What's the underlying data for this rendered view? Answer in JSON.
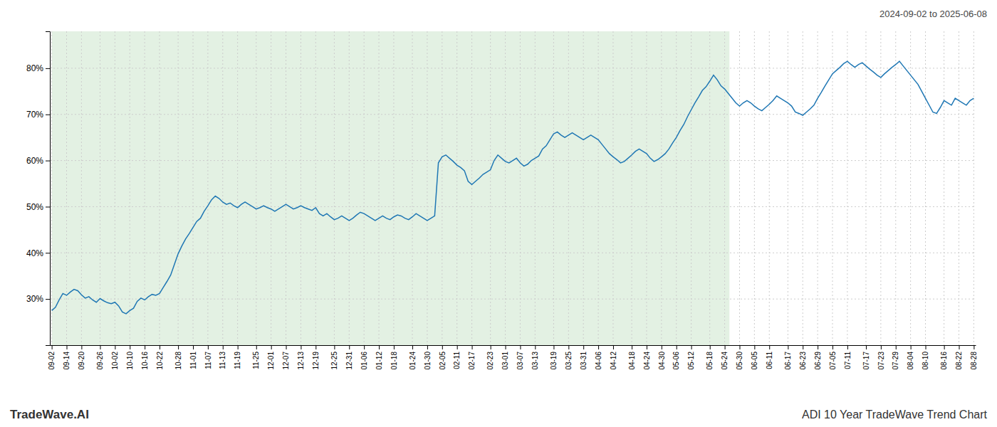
{
  "chart_data": {
    "type": "line",
    "title": "ADI 10 Year TradeWave Trend Chart",
    "subtitle": "2024-09-02 to 2025-06-08",
    "annotations": [
      "TradeWave.AI"
    ],
    "grid": true,
    "ylim": [
      20,
      88
    ],
    "yticks": [
      {
        "value": 30,
        "label": "30%"
      },
      {
        "value": 40,
        "label": "40%"
      },
      {
        "value": 50,
        "label": "50%"
      },
      {
        "value": 60,
        "label": "60%"
      },
      {
        "value": 70,
        "label": "70%"
      },
      {
        "value": 80,
        "label": "80%"
      }
    ],
    "shaded_fraction": 0.735,
    "categories": [
      "09-02",
      null,
      null,
      null,
      "09-14",
      null,
      null,
      null,
      "09-20",
      null,
      null,
      null,
      null,
      "09-26",
      null,
      null,
      null,
      "10-02",
      null,
      null,
      null,
      "10-10",
      null,
      null,
      null,
      "10-16",
      null,
      null,
      null,
      "10-22",
      null,
      null,
      null,
      null,
      "10-28",
      null,
      null,
      null,
      "11-01",
      null,
      null,
      null,
      "11-07",
      null,
      null,
      null,
      "11-13",
      null,
      null,
      null,
      "11-19",
      null,
      null,
      null,
      null,
      "11-25",
      null,
      null,
      null,
      "12-01",
      null,
      null,
      null,
      "12-07",
      null,
      null,
      null,
      "12-13",
      null,
      null,
      null,
      "12-19",
      null,
      null,
      null,
      null,
      "12-25",
      null,
      null,
      null,
      "12-31",
      null,
      null,
      null,
      "01-06",
      null,
      null,
      null,
      "01-12",
      null,
      null,
      null,
      "01-18",
      null,
      null,
      null,
      null,
      "01-24",
      null,
      null,
      null,
      "01-30",
      null,
      null,
      null,
      "02-05",
      null,
      null,
      null,
      "02-11",
      null,
      null,
      null,
      "02-17",
      null,
      null,
      null,
      null,
      "02-23",
      null,
      null,
      null,
      "03-01",
      null,
      null,
      null,
      "03-07",
      null,
      null,
      null,
      "03-13",
      null,
      null,
      null,
      null,
      "03-19",
      null,
      null,
      null,
      "03-25",
      null,
      null,
      null,
      "03-31",
      null,
      null,
      null,
      "04-06",
      null,
      null,
      null,
      "04-12",
      null,
      null,
      null,
      null,
      "04-18",
      null,
      null,
      null,
      "04-24",
      null,
      null,
      null,
      "04-30",
      null,
      null,
      null,
      "05-06",
      null,
      null,
      null,
      "05-12",
      null,
      null,
      null,
      null,
      "05-18",
      null,
      null,
      null,
      "05-24",
      null,
      null,
      null,
      "05-30",
      null,
      null,
      null,
      "06-05",
      null,
      null,
      null,
      "06-11",
      null,
      null,
      null,
      null,
      "06-17",
      null,
      null,
      null,
      "06-23",
      null,
      null,
      null,
      "06-29",
      null,
      null,
      null,
      "07-05",
      null,
      null,
      null,
      "07-11",
      null,
      null,
      null,
      null,
      "07-17",
      null,
      null,
      null,
      "07-23",
      null,
      null,
      null,
      "07-29",
      null,
      null,
      null,
      "08-04",
      null,
      null,
      null,
      "08-10",
      null,
      null,
      null,
      null,
      "08-16",
      null,
      null,
      null,
      "08-22",
      null,
      null,
      null,
      "08-28"
    ],
    "values": [
      27.5,
      28.2,
      29.8,
      31.2,
      30.8,
      31.5,
      32.1,
      31.8,
      30.9,
      30.2,
      30.5,
      29.8,
      29.3,
      30.1,
      29.6,
      29.2,
      29.0,
      29.3,
      28.5,
      27.2,
      26.8,
      27.5,
      28.0,
      29.5,
      30.2,
      29.8,
      30.5,
      31.0,
      30.8,
      31.2,
      32.5,
      33.8,
      35.2,
      37.5,
      39.8,
      41.5,
      43.0,
      44.2,
      45.5,
      46.8,
      47.5,
      49.0,
      50.2,
      51.5,
      52.3,
      51.8,
      51.0,
      50.5,
      50.8,
      50.2,
      49.8,
      50.5,
      51.0,
      50.5,
      50.0,
      49.5,
      49.8,
      50.2,
      49.8,
      49.5,
      49.0,
      49.5,
      50.0,
      50.5,
      50.0,
      49.5,
      49.8,
      50.2,
      49.8,
      49.5,
      49.2,
      49.8,
      48.5,
      48.0,
      48.5,
      47.8,
      47.2,
      47.5,
      48.0,
      47.5,
      47.0,
      47.5,
      48.2,
      48.8,
      48.5,
      48.0,
      47.5,
      47.0,
      47.5,
      48.0,
      47.5,
      47.2,
      47.8,
      48.2,
      48.0,
      47.5,
      47.2,
      47.8,
      48.5,
      48.0,
      47.5,
      47.0,
      47.5,
      48.0,
      59.5,
      60.8,
      61.2,
      60.5,
      59.8,
      59.0,
      58.5,
      57.8,
      55.5,
      54.8,
      55.5,
      56.2,
      57.0,
      57.5,
      58.0,
      60.0,
      61.2,
      60.5,
      59.8,
      59.5,
      60.0,
      60.5,
      59.5,
      58.8,
      59.2,
      60.0,
      60.5,
      61.0,
      62.5,
      63.2,
      64.5,
      65.8,
      66.2,
      65.5,
      65.0,
      65.5,
      66.0,
      65.5,
      65.0,
      64.5,
      65.0,
      65.5,
      65.0,
      64.5,
      63.5,
      62.5,
      61.5,
      60.8,
      60.2,
      59.5,
      59.8,
      60.5,
      61.2,
      62.0,
      62.5,
      62.0,
      61.5,
      60.5,
      59.8,
      60.2,
      60.8,
      61.5,
      62.5,
      63.8,
      65.0,
      66.5,
      67.8,
      69.5,
      71.0,
      72.5,
      73.8,
      75.2,
      76.0,
      77.2,
      78.5,
      77.5,
      76.2,
      75.5,
      74.5,
      73.5,
      72.5,
      71.8,
      72.5,
      73.0,
      72.5,
      71.8,
      71.2,
      70.8,
      71.5,
      72.2,
      73.0,
      74.0,
      73.5,
      73.0,
      72.5,
      71.8,
      70.5,
      70.2,
      69.8,
      70.5,
      71.2,
      72.0,
      73.5,
      74.8,
      76.2,
      77.5,
      78.8,
      79.5,
      80.2,
      81.0,
      81.5,
      80.8,
      80.2,
      80.8,
      81.2,
      80.5,
      79.8,
      79.2,
      78.5,
      78.0,
      78.8,
      79.5,
      80.2,
      80.8,
      81.5,
      80.5,
      79.5,
      78.5,
      77.5,
      76.5,
      75.0,
      73.5,
      72.0,
      70.5,
      70.2,
      71.5,
      73.0,
      72.5,
      72.0,
      73.5,
      73.0,
      72.5,
      72.0,
      73.0,
      73.5
    ]
  }
}
